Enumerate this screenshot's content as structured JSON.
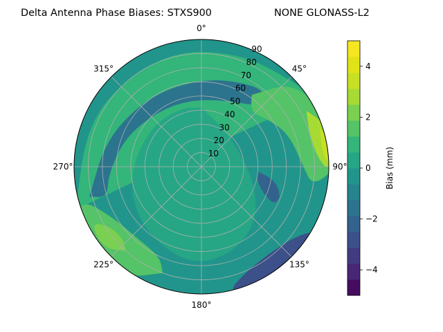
{
  "chart_data": {
    "type": "polar-contour",
    "title_left": "Delta Antenna Phase Biases: STXS900",
    "title_right": "NONE GLONASS-L2",
    "azimuth_ticks": [
      "0°",
      "45°",
      "90°",
      "135°",
      "180°",
      "225°",
      "270°",
      "315°"
    ],
    "radial_ticks": [
      "10",
      "20",
      "30",
      "40",
      "50",
      "60",
      "70",
      "80",
      "90"
    ],
    "radial_range": [
      0,
      90
    ],
    "colorbar": {
      "label": "Bias (mm)",
      "range": [
        -5,
        5
      ],
      "ticks": [
        "−4",
        "−2",
        "0",
        "2",
        "4"
      ],
      "levels": [
        -5,
        -4.375,
        -3.75,
        -3.125,
        -2.5,
        -1.875,
        -1.25,
        -0.625,
        0,
        0.625,
        1.25,
        1.875,
        2.5,
        3.125,
        3.75,
        4.375,
        5
      ]
    },
    "colors": {
      "palette": "viridis",
      "background": "#2a788e",
      "zero_band": "#21918c"
    },
    "contour_regions": [
      {
        "name": "outer-north-ring",
        "level": 1.25
      },
      {
        "name": "north-low-band",
        "level": -1.25
      },
      {
        "name": "northeast-high",
        "level": 1.875
      },
      {
        "name": "east-peak",
        "level": 3.125
      },
      {
        "name": "east-max",
        "level": 3.75
      },
      {
        "name": "east-low",
        "level": -1.875
      },
      {
        "name": "southwest-high",
        "level": 1.875
      },
      {
        "name": "southwest-peak",
        "level": 2.5
      },
      {
        "name": "southeast-low",
        "level": -2.5
      },
      {
        "name": "southeast-min",
        "level": -3.75
      },
      {
        "name": "center",
        "level": 0.625
      }
    ]
  }
}
